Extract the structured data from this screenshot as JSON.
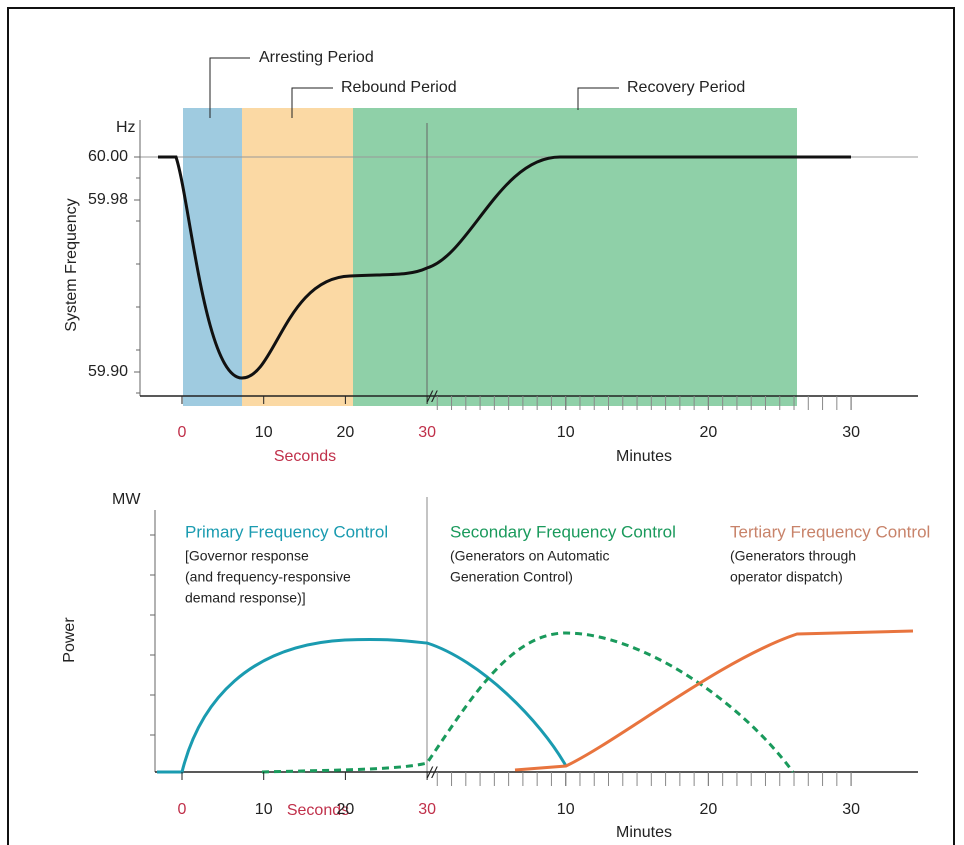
{
  "top": {
    "periods": [
      "Arresting Period",
      "Rebound Period",
      "Recovery Period"
    ],
    "y_unit": "Hz",
    "y_label": "System Frequency",
    "yticks": [
      {
        "value": 60,
        "label": "60.00"
      },
      59.98,
      {
        "value": 59.9,
        "label": "59.90"
      }
    ],
    "seconds_ticks": [
      0,
      10,
      20,
      30
    ],
    "seconds_label": "Seconds",
    "minutes_ticks": [
      10,
      20,
      30
    ],
    "minutes_label": "Minutes"
  },
  "bottom": {
    "y_unit": "MW",
    "y_label": "Power",
    "controls": [
      {
        "title": "Primary Frequency Control",
        "description": [
          "[Governor response",
          "(and frequency-responsive",
          "demand response)]"
        ]
      },
      {
        "title": "Secondary Frequency Control",
        "description": [
          "(Generators on Automatic",
          "Generation Control)"
        ]
      },
      {
        "title": "Tertiary Frequency Control",
        "description": [
          "(Generators through",
          "operator dispatch)"
        ]
      }
    ],
    "seconds_ticks": [
      0,
      10,
      20,
      30
    ],
    "seconds_label": "Seconds",
    "minutes_ticks": [
      10,
      20,
      30
    ],
    "minutes_label": "Minutes"
  }
}
